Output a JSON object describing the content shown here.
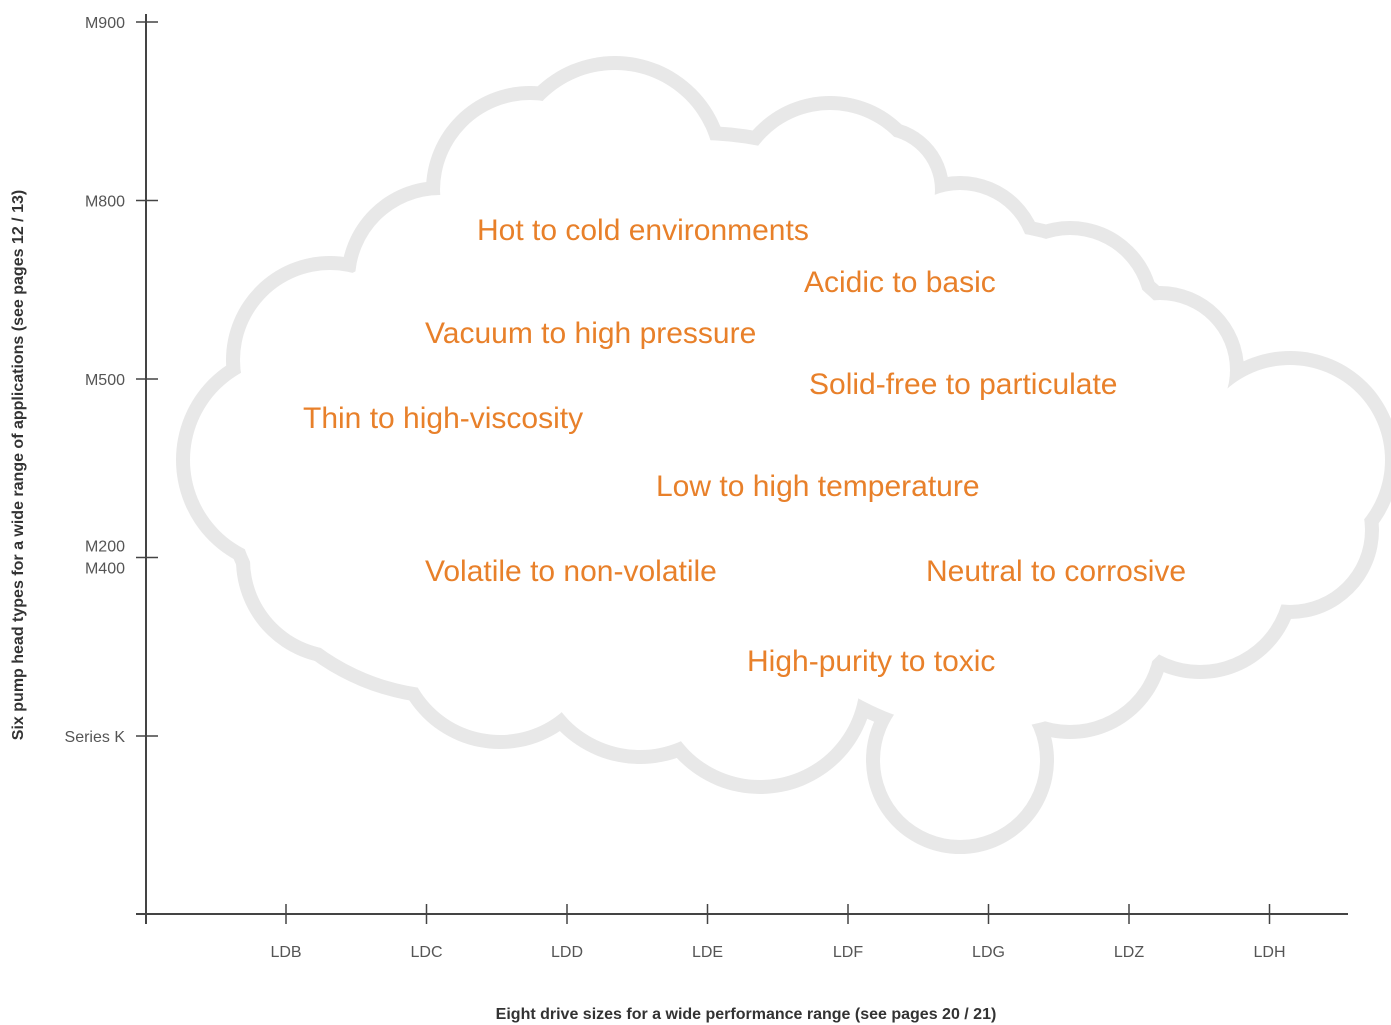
{
  "y_axis": {
    "label": "Six pump head types for a wide range of applications (see pages 12 / 13)",
    "ticks": [
      [
        "M900"
      ],
      [
        "M800"
      ],
      [
        "M500"
      ],
      [
        "M200",
        "M400"
      ],
      [
        "Series K"
      ]
    ]
  },
  "x_axis": {
    "label": "Eight drive sizes for a wide performance range (see pages 20 / 21)",
    "ticks": [
      "LDB",
      "LDC",
      "LDD",
      "LDE",
      "LDF",
      "LDG",
      "LDZ",
      "LDH"
    ]
  },
  "cloud": {
    "phrases": [
      "Hot to cold environments",
      "Acidic to basic",
      "Vacuum to high pressure",
      "Solid-free to particulate",
      "Thin to high-viscosity",
      "Low to high temperature",
      "Volatile to non-volatile",
      "Neutral to corrosive",
      "High-purity to toxic"
    ]
  }
}
